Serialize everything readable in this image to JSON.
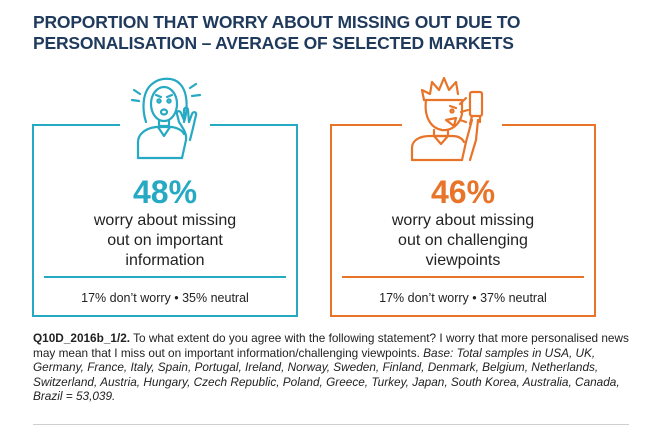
{
  "title": {
    "line1": "PROPORTION THAT WORRY ABOUT MISSING OUT DUE TO",
    "line2": "PERSONALISATION – AVERAGE OF SELECTED MARKETS"
  },
  "chart_data": {
    "type": "table",
    "title": "PROPORTION THAT WORRY ABOUT MISSING OUT DUE TO PERSONALISATION – AVERAGE OF SELECTED MARKETS",
    "items": [
      {
        "percent": "48%",
        "value": 48,
        "desc_lines": [
          "worry about missing",
          "out on important",
          "information"
        ],
        "stats": "17% don’t worry • 35% neutral",
        "dont_worry": 17,
        "neutral": 35,
        "color": "#26a9c3",
        "icon": "worried-woman-icon"
      },
      {
        "percent": "46%",
        "value": 46,
        "desc_lines": [
          "worry about missing",
          "out on challenging",
          "viewpoints"
        ],
        "stats": "17% don’t worry • 37% neutral",
        "dont_worry": 17,
        "neutral": 37,
        "color": "#e8742a",
        "icon": "shouting-man-icon"
      }
    ]
  },
  "footnote": {
    "code": "Q10D_2016b_1/2.",
    "question": " To what extent do you agree with the following statement? I worry that more personalised news may mean that I miss out on important information/challenging viewpoints. ",
    "base": "Base: Total samples in USA, UK, Germany, France, Italy, Spain, Portugal, Ireland, Norway, Sweden, Finland, Denmark, Belgium, Netherlands, Switzerland, Austria, Hungary, Czech Republic, Poland, Greece, Turkey, Japan, South Korea, Australia, Canada, Brazil = 53,039."
  }
}
